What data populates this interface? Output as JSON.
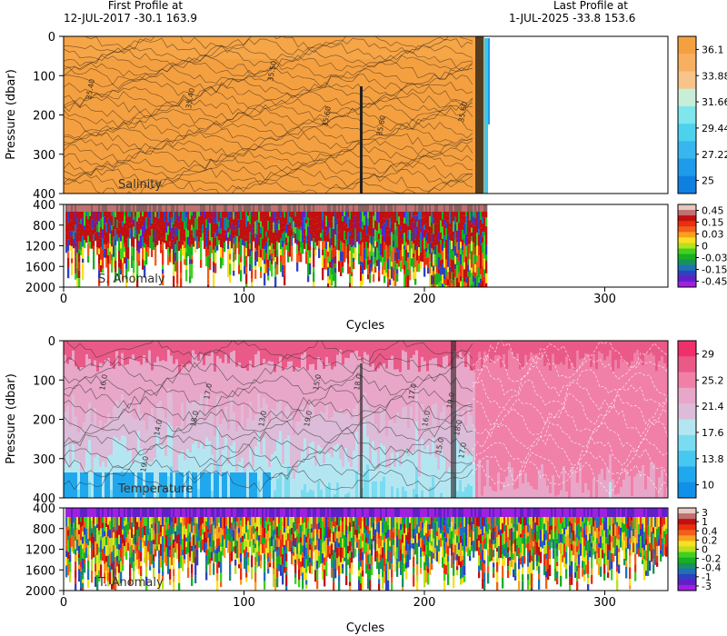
{
  "header": {
    "first_label": "First Profile at",
    "first_value": "12-JUL-2017   -30.1  163.9",
    "last_label": "Last Profile at",
    "last_value": "1-JUL-2025    -33.8  153.6"
  },
  "chart_data": [
    {
      "type": "heatmap",
      "name": "salinity",
      "panel_label": "Salinity",
      "ylabel": "Pressure (dbar)",
      "xlim": [
        0,
        335
      ],
      "ylim": [
        400,
        0
      ],
      "yticks": [
        0,
        100,
        200,
        300,
        400
      ],
      "profiles_end_cycle": 234,
      "contour_labels": [
        "35.40",
        "35.40",
        "35.50",
        "35.60",
        "35.60",
        "35.60"
      ],
      "colorbar": {
        "labels": [
          "36.1",
          "33.88",
          "31.66",
          "29.44",
          "27.22",
          "25"
        ],
        "colors": [
          "#F5A040",
          "#F7B060",
          "#F9C48A",
          "#C8EED8",
          "#7FE6EE",
          "#4DD2EE",
          "#38B6EE",
          "#1E9BEA",
          "#1080E0"
        ]
      }
    },
    {
      "type": "heatmap",
      "name": "salinity_anomaly",
      "panel_label": "S. Anomaly",
      "xlabel": "Cycles",
      "xlim": [
        0,
        335
      ],
      "xticks": [
        0,
        100,
        200,
        300
      ],
      "ylim": [
        2000,
        400
      ],
      "yticks": [
        400,
        800,
        1200,
        1600,
        2000
      ],
      "colorbar": {
        "labels": [
          "0.45",
          "0.15",
          "0.03",
          "0",
          "-0.03",
          "-0.15",
          "-0.45"
        ],
        "colors": [
          "#E8C8C0",
          "#C07070",
          "#C01010",
          "#E83010",
          "#F06018",
          "#F8A020",
          "#F8E020",
          "#B8E020",
          "#40D020",
          "#18B020",
          "#189060",
          "#2070B8",
          "#3040C0",
          "#6020C8",
          "#A020E0"
        ]
      }
    },
    {
      "type": "heatmap",
      "name": "temperature",
      "panel_label": "Temperature",
      "ylabel": "Pressure (dbar)",
      "xlim": [
        0,
        335
      ],
      "ylim": [
        400,
        0
      ],
      "yticks": [
        0,
        100,
        200,
        300,
        400
      ],
      "contour_labels": [
        "16.0",
        "17.0",
        "18.0",
        "19.0",
        "14.0",
        "13.0",
        "15.0",
        "19.0",
        "18.0",
        "17.0",
        "16.0",
        "15.0",
        "19.0",
        "18.0",
        "17.0"
      ],
      "colorbar": {
        "labels": [
          "29",
          "25.2",
          "21.4",
          "17.6",
          "13.8",
          "10"
        ],
        "colors": [
          "#F0306A",
          "#EA5A88",
          "#F080A8",
          "#E8A6C8",
          "#DCBCD8",
          "#B4E6F2",
          "#7ADCF0",
          "#48C8F0",
          "#20A8EE",
          "#1090E8"
        ]
      }
    },
    {
      "type": "heatmap",
      "name": "temperature_anomaly",
      "panel_label": "T. Anomaly",
      "xlabel": "Cycles",
      "xlim": [
        0,
        335
      ],
      "xticks": [
        0,
        100,
        200,
        300
      ],
      "ylim": [
        2000,
        400
      ],
      "yticks": [
        400,
        800,
        1200,
        1600,
        2000
      ],
      "colorbar": {
        "labels": [
          "3",
          "1",
          "0.4",
          "0.2",
          "0",
          "-0.2",
          "-0.4",
          "-1",
          "-3"
        ],
        "colors": [
          "#E8C8C0",
          "#C07070",
          "#C01010",
          "#E83010",
          "#F06018",
          "#F8A020",
          "#F8E020",
          "#B8E020",
          "#40D020",
          "#18B020",
          "#189060",
          "#2070B8",
          "#3040C0",
          "#6020C8",
          "#A020E0"
        ]
      }
    }
  ]
}
